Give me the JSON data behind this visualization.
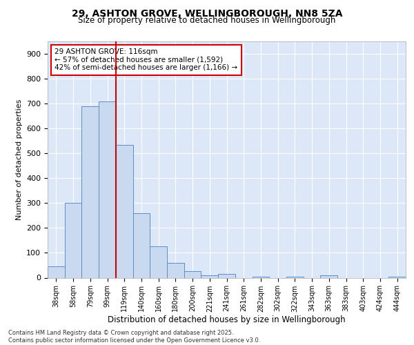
{
  "title_line1": "29, ASHTON GROVE, WELLINGBOROUGH, NN8 5ZA",
  "title_line2": "Size of property relative to detached houses in Wellingborough",
  "xlabel": "Distribution of detached houses by size in Wellingborough",
  "ylabel": "Number of detached properties",
  "bar_labels": [
    "38sqm",
    "58sqm",
    "79sqm",
    "99sqm",
    "119sqm",
    "140sqm",
    "160sqm",
    "180sqm",
    "200sqm",
    "221sqm",
    "241sqm",
    "261sqm",
    "282sqm",
    "302sqm",
    "322sqm",
    "343sqm",
    "363sqm",
    "383sqm",
    "403sqm",
    "424sqm",
    "444sqm"
  ],
  "bar_values": [
    45,
    300,
    690,
    710,
    535,
    260,
    125,
    60,
    25,
    10,
    15,
    0,
    5,
    0,
    5,
    0,
    10,
    0,
    0,
    0,
    5
  ],
  "bar_color": "#c9d9f0",
  "bar_edge_color": "#5b8ec7",
  "vline_color": "#cc0000",
  "annotation_text": "29 ASHTON GROVE: 116sqm\n← 57% of detached houses are smaller (1,592)\n42% of semi-detached houses are larger (1,166) →",
  "annotation_box_color": "#cc0000",
  "background_color": "#dce8f8",
  "footer": "Contains HM Land Registry data © Crown copyright and database right 2025.\nContains public sector information licensed under the Open Government Licence v3.0.",
  "ylim": [
    0,
    950
  ],
  "yticks": [
    0,
    100,
    200,
    300,
    400,
    500,
    600,
    700,
    800,
    900
  ]
}
